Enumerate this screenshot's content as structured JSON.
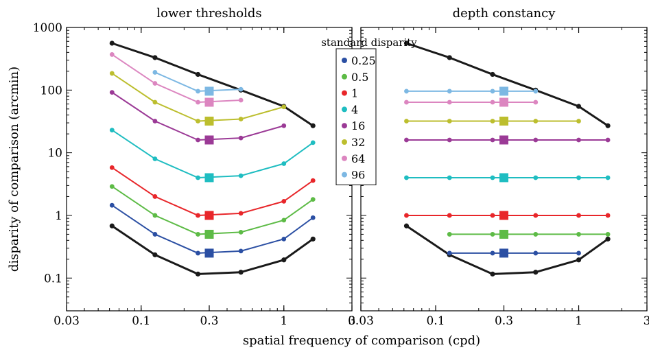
{
  "chart_data": [
    {
      "type": "line",
      "title": "lower thresholds",
      "xlabel": "spatial frequency of comparison (cpd)",
      "ylabel": "disparity of comparison (arcmin)",
      "x_scale": "log",
      "y_scale": "log",
      "xlim": [
        0.03,
        3
      ],
      "ylim": [
        0.03,
        1000
      ],
      "xticks": [
        "0.03",
        "0.1",
        "0.3",
        "1",
        "3"
      ],
      "yticks": [
        "0.1",
        "1",
        "10",
        "100",
        "1000"
      ],
      "series": [
        {
          "name": "",
          "color": "#1a1a1a",
          "x": [
            0.0625,
            0.125,
            0.25,
            0.5,
            1,
            1.6
          ],
          "y": [
            0.68,
            0.235,
            0.116,
            0.124,
            0.195,
            0.42
          ]
        },
        {
          "name": "",
          "color": "#1a1a1a",
          "x": [
            0.0625,
            0.125,
            0.25,
            0.5,
            1,
            1.6
          ],
          "y": [
            560,
            330,
            178,
            100,
            55,
            27
          ]
        },
        {
          "name": "0.25",
          "color": "#2b4fa3",
          "x": [
            0.0625,
            0.125,
            0.25,
            0.5,
            1,
            1.6
          ],
          "y": [
            1.45,
            0.5,
            0.25,
            0.27,
            0.42,
            0.92
          ],
          "standard_x": 0.3,
          "standard_y": 0.25
        },
        {
          "name": "0.5",
          "color": "#5dbb46",
          "x": [
            0.0625,
            0.125,
            0.25,
            0.5,
            1,
            1.6
          ],
          "y": [
            2.9,
            1.0,
            0.5,
            0.54,
            0.84,
            1.8
          ],
          "standard_x": 0.3,
          "standard_y": 0.5
        },
        {
          "name": "1",
          "color": "#e8262a",
          "x": [
            0.0625,
            0.125,
            0.25,
            0.5,
            1,
            1.6
          ],
          "y": [
            5.8,
            2.0,
            1.0,
            1.08,
            1.68,
            3.6
          ],
          "standard_x": 0.3,
          "standard_y": 1
        },
        {
          "name": "4",
          "color": "#1fbdc1",
          "x": [
            0.0625,
            0.125,
            0.25,
            0.5,
            1,
            1.6
          ],
          "y": [
            23,
            8,
            4,
            4.3,
            6.7,
            14.5
          ],
          "standard_x": 0.3,
          "standard_y": 4
        },
        {
          "name": "16",
          "color": "#9b3a96",
          "x": [
            0.0625,
            0.125,
            0.25,
            0.5,
            1
          ],
          "y": [
            92,
            32,
            16,
            17.2,
            27
          ],
          "standard_x": 0.3,
          "standard_y": 16
        },
        {
          "name": "32",
          "color": "#bcbe2e",
          "x": [
            0.0625,
            0.125,
            0.25,
            0.5,
            1
          ],
          "y": [
            185,
            64,
            32,
            34.5,
            54
          ],
          "standard_x": 0.3,
          "standard_y": 32
        },
        {
          "name": "64",
          "color": "#dc86c0",
          "x": [
            0.0625,
            0.125,
            0.25,
            0.5
          ],
          "y": [
            370,
            128,
            64,
            69
          ],
          "standard_x": 0.3,
          "standard_y": 64
        },
        {
          "name": "96",
          "color": "#7db8e3",
          "x": [
            0.125,
            0.25,
            0.5
          ],
          "y": [
            192,
            96,
            103
          ],
          "standard_x": 0.3,
          "standard_y": 96
        }
      ]
    },
    {
      "type": "line",
      "title": "depth constancy",
      "xlabel": "spatial frequency of comparison (cpd)",
      "ylabel": "",
      "x_scale": "log",
      "y_scale": "log",
      "xlim": [
        0.03,
        3
      ],
      "ylim": [
        0.03,
        1000
      ],
      "xticks": [
        "0.03",
        "0.1",
        "0.3",
        "1",
        "3"
      ],
      "yticks": [],
      "series": [
        {
          "name": "",
          "color": "#1a1a1a",
          "x": [
            0.0625,
            0.125,
            0.25,
            0.5,
            1,
            1.6
          ],
          "y": [
            0.68,
            0.235,
            0.116,
            0.124,
            0.195,
            0.42
          ]
        },
        {
          "name": "",
          "color": "#1a1a1a",
          "x": [
            0.0625,
            0.125,
            0.25,
            0.5,
            1,
            1.6
          ],
          "y": [
            560,
            330,
            178,
            100,
            55,
            27
          ]
        },
        {
          "name": "0.25",
          "color": "#2b4fa3",
          "x": [
            0.125,
            0.25,
            0.5,
            1
          ],
          "y": [
            0.25,
            0.25,
            0.25,
            0.25
          ],
          "standard_x": 0.3,
          "standard_y": 0.25
        },
        {
          "name": "0.5",
          "color": "#5dbb46",
          "x": [
            0.125,
            0.25,
            0.5,
            1,
            1.6
          ],
          "y": [
            0.5,
            0.5,
            0.5,
            0.5,
            0.5
          ],
          "standard_x": 0.3,
          "standard_y": 0.5
        },
        {
          "name": "1",
          "color": "#e8262a",
          "x": [
            0.0625,
            0.125,
            0.25,
            0.5,
            1,
            1.6
          ],
          "y": [
            1,
            1,
            1,
            1,
            1,
            1
          ],
          "standard_x": 0.3,
          "standard_y": 1
        },
        {
          "name": "4",
          "color": "#1fbdc1",
          "x": [
            0.0625,
            0.125,
            0.25,
            0.5,
            1,
            1.6
          ],
          "y": [
            4,
            4,
            4,
            4,
            4,
            4
          ],
          "standard_x": 0.3,
          "standard_y": 4
        },
        {
          "name": "16",
          "color": "#9b3a96",
          "x": [
            0.0625,
            0.125,
            0.25,
            0.5,
            1,
            1.6
          ],
          "y": [
            16,
            16,
            16,
            16,
            16,
            16
          ],
          "standard_x": 0.3,
          "standard_y": 16
        },
        {
          "name": "32",
          "color": "#bcbe2e",
          "x": [
            0.0625,
            0.125,
            0.25,
            0.5,
            1
          ],
          "y": [
            32,
            32,
            32,
            32,
            32
          ],
          "standard_x": 0.3,
          "standard_y": 32
        },
        {
          "name": "64",
          "color": "#dc86c0",
          "x": [
            0.0625,
            0.125,
            0.25,
            0.5
          ],
          "y": [
            64,
            64,
            64,
            64
          ],
          "standard_x": 0.3,
          "standard_y": 64
        },
        {
          "name": "96",
          "color": "#7db8e3",
          "x": [
            0.0625,
            0.125,
            0.25,
            0.5
          ],
          "y": [
            96,
            96,
            96,
            96
          ],
          "standard_x": 0.3,
          "standard_y": 96
        }
      ]
    }
  ],
  "legend": {
    "title": "standard disparity",
    "placement": "between panels, top",
    "items": [
      {
        "label": "0.25",
        "color": "#2b4fa3"
      },
      {
        "label": "0.5",
        "color": "#5dbb46"
      },
      {
        "label": "1",
        "color": "#e8262a"
      },
      {
        "label": "4",
        "color": "#1fbdc1"
      },
      {
        "label": "16",
        "color": "#9b3a96"
      },
      {
        "label": "32",
        "color": "#bcbe2e"
      },
      {
        "label": "64",
        "color": "#dc86c0"
      },
      {
        "label": "96",
        "color": "#7db8e3"
      }
    ]
  },
  "shared_xlabel": "spatial frequency of comparison (cpd)"
}
